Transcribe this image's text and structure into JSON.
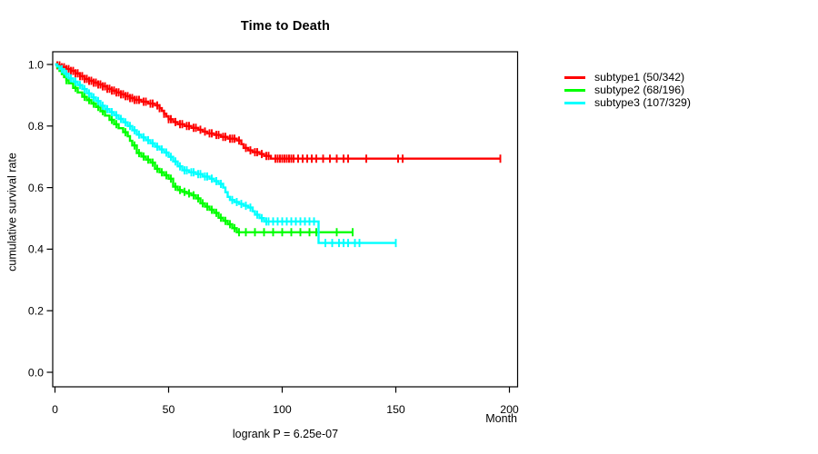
{
  "chart_data": {
    "type": "line",
    "variant": "kaplan-meier-step",
    "title": "Time to Death",
    "xlabel": "Month",
    "ylabel": "cumulative survival rate",
    "annotation": "logrank P = 6.25e-07",
    "xlim": [
      0,
      200
    ],
    "ylim": [
      0.0,
      1.0
    ],
    "grid": false,
    "legend_position": "right",
    "x_ticks": [
      0,
      50,
      100,
      150,
      200
    ],
    "y_ticks": [
      "1.0",
      "0.8",
      "0.6",
      "0.4",
      "0.2",
      "0.0"
    ],
    "series": [
      {
        "id": "subtype1",
        "name": "subtype1 (50/342)",
        "events": "50/342",
        "color": "#ff0000",
        "end_month": 196,
        "steps": [
          [
            0,
            1.0
          ],
          [
            1,
            0.997
          ],
          [
            3,
            0.991
          ],
          [
            5,
            0.985
          ],
          [
            7,
            0.979
          ],
          [
            9,
            0.971
          ],
          [
            11,
            0.962
          ],
          [
            13,
            0.953
          ],
          [
            15,
            0.947
          ],
          [
            17,
            0.941
          ],
          [
            19,
            0.935
          ],
          [
            21,
            0.929
          ],
          [
            23,
            0.921
          ],
          [
            25,
            0.915
          ],
          [
            27,
            0.909
          ],
          [
            29,
            0.903
          ],
          [
            31,
            0.897
          ],
          [
            33,
            0.891
          ],
          [
            35,
            0.885
          ],
          [
            38,
            0.879
          ],
          [
            41,
            0.873
          ],
          [
            44,
            0.867
          ],
          [
            46,
            0.858
          ],
          [
            47,
            0.849
          ],
          [
            48,
            0.84
          ],
          [
            49,
            0.831
          ],
          [
            50,
            0.822
          ],
          [
            52,
            0.813
          ],
          [
            54,
            0.806
          ],
          [
            57,
            0.8
          ],
          [
            60,
            0.794
          ],
          [
            63,
            0.788
          ],
          [
            65,
            0.782
          ],
          [
            67,
            0.776
          ],
          [
            70,
            0.771
          ],
          [
            73,
            0.765
          ],
          [
            76,
            0.759
          ],
          [
            80,
            0.753
          ],
          [
            82,
            0.741
          ],
          [
            83,
            0.729
          ],
          [
            85,
            0.721
          ],
          [
            87,
            0.715
          ],
          [
            90,
            0.709
          ],
          [
            92,
            0.703
          ],
          [
            95,
            0.694
          ]
        ],
        "censors": [
          1,
          2,
          3,
          4,
          5,
          6,
          7,
          8,
          9,
          10,
          11,
          12,
          13,
          14,
          15,
          16,
          17,
          18,
          19,
          20,
          21,
          22,
          23,
          24,
          25,
          26,
          27,
          28,
          29,
          30,
          31,
          32,
          33,
          34,
          35,
          36,
          37,
          39,
          40,
          42,
          43,
          45,
          46,
          48,
          50,
          51,
          53,
          55,
          56,
          58,
          59,
          61,
          62,
          64,
          66,
          68,
          69,
          71,
          72,
          74,
          75,
          77,
          78,
          79,
          81,
          84,
          86,
          88,
          89,
          91,
          93,
          94,
          97,
          98,
          99,
          100,
          101,
          102,
          103,
          104,
          105,
          107,
          109,
          111,
          113,
          115,
          118,
          121,
          124,
          127,
          129,
          137,
          151,
          153,
          196
        ]
      },
      {
        "id": "subtype2",
        "name": "subtype2 (68/196)",
        "events": "68/196",
        "color": "#00ff00",
        "end_month": 131,
        "steps": [
          [
            0,
            1.0
          ],
          [
            1,
            0.99
          ],
          [
            2,
            0.979
          ],
          [
            3,
            0.969
          ],
          [
            4,
            0.959
          ],
          [
            5,
            0.949
          ],
          [
            6,
            0.939
          ],
          [
            8,
            0.924
          ],
          [
            10,
            0.909
          ],
          [
            12,
            0.895
          ],
          [
            14,
            0.884
          ],
          [
            16,
            0.873
          ],
          [
            18,
            0.862
          ],
          [
            20,
            0.848
          ],
          [
            22,
            0.834
          ],
          [
            24,
            0.82
          ],
          [
            26,
            0.806
          ],
          [
            28,
            0.793
          ],
          [
            30,
            0.78
          ],
          [
            32,
            0.767
          ],
          [
            33,
            0.752
          ],
          [
            34,
            0.737
          ],
          [
            36,
            0.712
          ],
          [
            38,
            0.701
          ],
          [
            40,
            0.691
          ],
          [
            42,
            0.681
          ],
          [
            44,
            0.661
          ],
          [
            46,
            0.65
          ],
          [
            48,
            0.64
          ],
          [
            50,
            0.629
          ],
          [
            52,
            0.603
          ],
          [
            54,
            0.592
          ],
          [
            56,
            0.586
          ],
          [
            58,
            0.581
          ],
          [
            60,
            0.575
          ],
          [
            62,
            0.565
          ],
          [
            64,
            0.549
          ],
          [
            66,
            0.538
          ],
          [
            68,
            0.528
          ],
          [
            70,
            0.518
          ],
          [
            72,
            0.502
          ],
          [
            74,
            0.492
          ],
          [
            76,
            0.481
          ],
          [
            78,
            0.468
          ],
          [
            80,
            0.455
          ]
        ],
        "censors": [
          5,
          9,
          13,
          15,
          17,
          19,
          21,
          25,
          27,
          31,
          35,
          37,
          39,
          41,
          43,
          45,
          47,
          49,
          51,
          53,
          55,
          57,
          59,
          61,
          63,
          65,
          67,
          69,
          71,
          73,
          75,
          77,
          79,
          81,
          84,
          88,
          92,
          96,
          100,
          104,
          108,
          112,
          115,
          124,
          131
        ]
      },
      {
        "id": "subtype3",
        "name": "subtype3 (107/329)",
        "events": "107/329",
        "color": "#00ffff",
        "end_month": 150,
        "steps": [
          [
            0,
            1.0
          ],
          [
            1,
            0.994
          ],
          [
            2,
            0.985
          ],
          [
            4,
            0.97
          ],
          [
            6,
            0.955
          ],
          [
            8,
            0.944
          ],
          [
            10,
            0.933
          ],
          [
            12,
            0.92
          ],
          [
            14,
            0.906
          ],
          [
            16,
            0.893
          ],
          [
            18,
            0.881
          ],
          [
            20,
            0.866
          ],
          [
            22,
            0.855
          ],
          [
            24,
            0.845
          ],
          [
            26,
            0.835
          ],
          [
            28,
            0.823
          ],
          [
            30,
            0.812
          ],
          [
            32,
            0.8
          ],
          [
            34,
            0.786
          ],
          [
            36,
            0.772
          ],
          [
            38,
            0.763
          ],
          [
            40,
            0.754
          ],
          [
            42,
            0.744
          ],
          [
            44,
            0.733
          ],
          [
            46,
            0.724
          ],
          [
            48,
            0.714
          ],
          [
            50,
            0.7
          ],
          [
            52,
            0.685
          ],
          [
            54,
            0.669
          ],
          [
            56,
            0.656
          ],
          [
            59,
            0.65
          ],
          [
            62,
            0.644
          ],
          [
            65,
            0.636
          ],
          [
            68,
            0.629
          ],
          [
            70,
            0.621
          ],
          [
            72,
            0.612
          ],
          [
            74,
            0.6
          ],
          [
            75,
            0.585
          ],
          [
            76,
            0.57
          ],
          [
            77,
            0.56
          ],
          [
            79,
            0.553
          ],
          [
            81,
            0.547
          ],
          [
            83,
            0.541
          ],
          [
            85,
            0.535
          ],
          [
            87,
            0.523
          ],
          [
            88,
            0.512
          ],
          [
            90,
            0.501
          ],
          [
            92,
            0.49
          ],
          [
            116,
            0.42
          ]
        ],
        "censors": [
          3,
          5,
          7,
          9,
          11,
          13,
          15,
          17,
          19,
          21,
          23,
          25,
          27,
          29,
          31,
          33,
          35,
          37,
          39,
          41,
          43,
          45,
          47,
          49,
          51,
          53,
          55,
          57,
          58,
          60,
          61,
          63,
          64,
          66,
          67,
          69,
          71,
          73,
          78,
          80,
          82,
          84,
          86,
          89,
          91,
          93,
          94,
          96,
          98,
          100,
          102,
          104,
          106,
          108,
          110,
          112,
          114,
          119,
          122,
          125,
          127,
          129,
          132,
          134,
          150
        ]
      }
    ]
  }
}
